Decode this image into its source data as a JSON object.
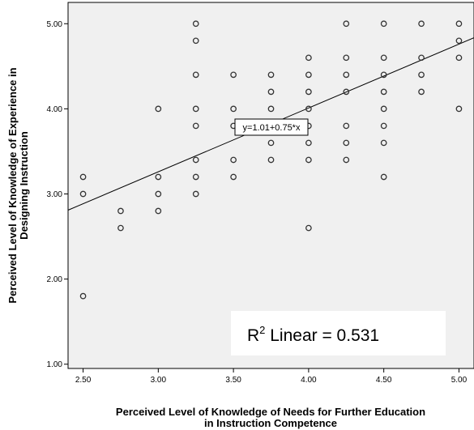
{
  "chart_data": {
    "type": "scatter",
    "xlabel_line1": "Perceived Level of Knowledge of Needs for Further Education",
    "xlabel_line2": "in Instruction Competence",
    "ylabel_line1": "Perceived Level of Knowledge of Experience in",
    "ylabel_line2": "Designing Instruction",
    "xlim": [
      2.4,
      5.1
    ],
    "ylim": [
      0.95,
      5.25
    ],
    "x_ticks": [
      2.5,
      3.0,
      3.5,
      4.0,
      4.5,
      5.0
    ],
    "x_tick_labels": [
      "2.50",
      "3.00",
      "3.50",
      "4.00",
      "4.50",
      "5.00"
    ],
    "y_ticks": [
      1.0,
      2.0,
      3.0,
      4.0,
      5.0
    ],
    "y_tick_labels": [
      "1.00",
      "2.00",
      "3.00",
      "4.00",
      "5.00"
    ],
    "grid": false,
    "fit_line": {
      "intercept": 1.01,
      "slope": 0.75,
      "label": "y=1.01+0.75*x"
    },
    "r2": {
      "prefix": "R",
      "sup": "2",
      "text": " Linear = 0.531"
    },
    "points": [
      [
        2.5,
        3.2
      ],
      [
        2.5,
        3.0
      ],
      [
        2.5,
        1.8
      ],
      [
        2.75,
        2.8
      ],
      [
        2.75,
        2.6
      ],
      [
        3.0,
        4.0
      ],
      [
        3.0,
        3.2
      ],
      [
        3.0,
        3.0
      ],
      [
        3.0,
        2.8
      ],
      [
        3.25,
        5.0
      ],
      [
        3.25,
        4.8
      ],
      [
        3.25,
        4.4
      ],
      [
        3.25,
        4.0
      ],
      [
        3.25,
        3.8
      ],
      [
        3.25,
        3.4
      ],
      [
        3.25,
        3.2
      ],
      [
        3.25,
        3.0
      ],
      [
        3.5,
        4.4
      ],
      [
        3.5,
        4.0
      ],
      [
        3.5,
        3.8
      ],
      [
        3.5,
        3.4
      ],
      [
        3.5,
        3.2
      ],
      [
        3.75,
        4.4
      ],
      [
        3.75,
        4.2
      ],
      [
        3.75,
        4.0
      ],
      [
        3.75,
        3.8
      ],
      [
        3.75,
        3.6
      ],
      [
        3.75,
        3.4
      ],
      [
        4.0,
        4.6
      ],
      [
        4.0,
        4.4
      ],
      [
        4.0,
        4.2
      ],
      [
        4.0,
        4.0
      ],
      [
        4.0,
        3.8
      ],
      [
        4.0,
        3.6
      ],
      [
        4.0,
        3.4
      ],
      [
        4.0,
        2.6
      ],
      [
        4.25,
        5.0
      ],
      [
        4.25,
        4.6
      ],
      [
        4.25,
        4.4
      ],
      [
        4.25,
        4.2
      ],
      [
        4.25,
        3.8
      ],
      [
        4.25,
        3.6
      ],
      [
        4.25,
        3.4
      ],
      [
        4.5,
        5.0
      ],
      [
        4.5,
        4.6
      ],
      [
        4.5,
        4.4
      ],
      [
        4.5,
        4.2
      ],
      [
        4.5,
        4.0
      ],
      [
        4.5,
        3.8
      ],
      [
        4.5,
        3.6
      ],
      [
        4.5,
        3.2
      ],
      [
        4.75,
        5.0
      ],
      [
        4.75,
        4.6
      ],
      [
        4.75,
        4.4
      ],
      [
        4.75,
        4.2
      ],
      [
        5.0,
        5.0
      ],
      [
        5.0,
        4.8
      ],
      [
        5.0,
        4.6
      ],
      [
        5.0,
        4.0
      ]
    ]
  }
}
